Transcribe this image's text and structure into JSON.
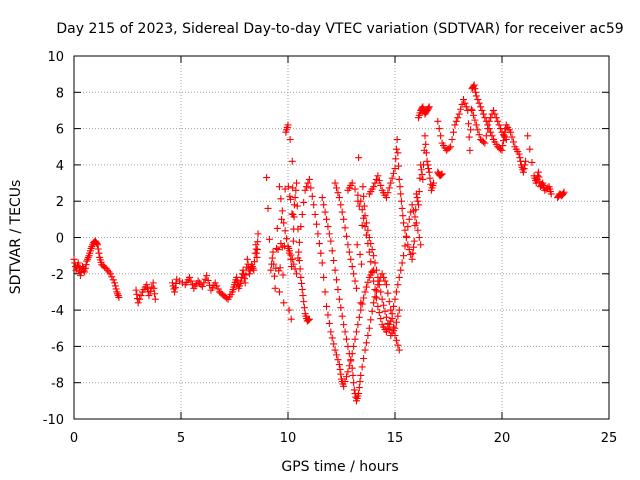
{
  "chart_data": {
    "type": "scatter",
    "title": "Day 215 of 2023, Sidereal Day-to-day VTEC variation (SDTVAR) for receiver ac59",
    "xlabel": "GPS time / hours",
    "ylabel": "SDTVAR / TECUs",
    "xlim": [
      0,
      25
    ],
    "ylim": [
      -10,
      10
    ],
    "xticks": [
      0,
      5,
      10,
      15,
      20,
      25
    ],
    "yticks": [
      -10,
      -8,
      -6,
      -4,
      -2,
      0,
      2,
      4,
      6,
      8,
      10
    ],
    "grid": true,
    "marker": "+",
    "color": "#ff0000",
    "series": [
      {
        "name": "SDTVAR",
        "segments": [
          [
            [
              0.0,
              -1.2
            ],
            [
              0.1,
              -1.8
            ],
            [
              0.2,
              -1.4
            ],
            [
              0.3,
              -2.1
            ],
            [
              0.4,
              -1.6
            ],
            [
              0.5,
              -1.9
            ],
            [
              0.6,
              -1.3
            ],
            [
              0.7,
              -1.0
            ],
            [
              0.8,
              -0.6
            ],
            [
              0.9,
              -0.3
            ],
            [
              1.0,
              -0.2
            ],
            [
              1.1,
              -0.4
            ],
            [
              1.2,
              -1.1
            ],
            [
              1.3,
              -1.5
            ],
            [
              1.5,
              -1.7
            ],
            [
              1.7,
              -2.0
            ],
            [
              1.9,
              -2.5
            ],
            [
              2.0,
              -3.0
            ],
            [
              2.1,
              -3.3
            ]
          ],
          [
            [
              2.9,
              -2.9
            ],
            [
              3.0,
              -3.6
            ],
            [
              3.2,
              -3.0
            ],
            [
              3.4,
              -2.6
            ],
            [
              3.5,
              -3.2
            ],
            [
              3.7,
              -2.5
            ],
            [
              3.8,
              -3.4
            ]
          ],
          [
            [
              4.6,
              -2.5
            ],
            [
              4.7,
              -3.0
            ],
            [
              4.8,
              -2.3
            ],
            [
              5.2,
              -2.6
            ],
            [
              5.4,
              -2.2
            ],
            [
              5.6,
              -2.8
            ],
            [
              5.8,
              -2.4
            ],
            [
              6.0,
              -2.7
            ],
            [
              6.2,
              -2.1
            ],
            [
              6.4,
              -2.9
            ],
            [
              6.6,
              -2.5
            ],
            [
              6.8,
              -3.0
            ],
            [
              7.0,
              -3.2
            ],
            [
              7.2,
              -3.4
            ],
            [
              7.4,
              -3.0
            ],
            [
              7.5,
              -2.6
            ],
            [
              7.6,
              -2.2
            ],
            [
              7.7,
              -2.8
            ],
            [
              7.8,
              -2.4
            ],
            [
              7.9,
              -1.8
            ],
            [
              8.0,
              -2.5
            ],
            [
              8.1,
              -1.2
            ],
            [
              8.2,
              -2.0
            ],
            [
              8.3,
              -1.5
            ],
            [
              8.4,
              -1.8
            ],
            [
              8.5,
              -0.4
            ],
            [
              8.55,
              -1.1
            ],
            [
              8.6,
              0.2
            ]
          ],
          [
            [
              9.0,
              3.3
            ],
            [
              9.2,
              -1.8
            ],
            [
              9.3,
              -0.8
            ],
            [
              9.4,
              -2.8
            ],
            [
              9.5,
              0.5
            ],
            [
              9.6,
              -3.0
            ],
            [
              9.7,
              1.0
            ],
            [
              9.8,
              -3.6
            ],
            [
              9.9,
              5.8
            ],
            [
              10.0,
              6.2
            ],
            [
              10.05,
              -4.0
            ],
            [
              10.1,
              5.4
            ],
            [
              10.15,
              -4.5
            ],
            [
              10.2,
              4.2
            ],
            [
              10.25,
              -0.2
            ],
            [
              10.3,
              1.8
            ],
            [
              10.4,
              3.0
            ],
            [
              10.5,
              -0.8
            ],
            [
              10.6,
              -2.2
            ],
            [
              10.7,
              -3.2
            ],
            [
              10.8,
              -4.2
            ],
            [
              10.9,
              -4.6
            ],
            [
              11.0,
              -4.5
            ]
          ],
          [
            [
              9.6,
              2.8
            ],
            [
              9.8,
              0.8
            ],
            [
              10.0,
              -0.5
            ],
            [
              10.2,
              -1.2
            ],
            [
              10.4,
              -2.0
            ],
            [
              10.6,
              0.6
            ],
            [
              10.8,
              2.6
            ],
            [
              11.0,
              3.2
            ],
            [
              11.2,
              1.8
            ],
            [
              11.4,
              0.2
            ],
            [
              11.6,
              -1.4
            ],
            [
              11.8,
              -3.8
            ],
            [
              12.0,
              -5.2
            ],
            [
              12.2,
              -6.2
            ],
            [
              12.4,
              -7.0
            ],
            [
              12.5,
              -7.8
            ],
            [
              12.6,
              -8.2
            ],
            [
              12.8,
              -7.4
            ],
            [
              13.0,
              -6.4
            ],
            [
              13.2,
              -5.2
            ],
            [
              13.4,
              -4.0
            ],
            [
              13.6,
              -3.0
            ],
            [
              13.8,
              -2.2
            ],
            [
              14.0,
              -1.8
            ]
          ],
          [
            [
              11.6,
              2.2
            ],
            [
              11.8,
              1.0
            ],
            [
              12.0,
              -0.2
            ],
            [
              12.2,
              -1.8
            ],
            [
              12.4,
              -3.4
            ],
            [
              12.6,
              -4.8
            ],
            [
              12.8,
              -6.0
            ],
            [
              13.0,
              -7.2
            ],
            [
              13.1,
              -8.4
            ],
            [
              13.2,
              -9.0
            ],
            [
              13.3,
              -8.6
            ],
            [
              13.4,
              -7.6
            ],
            [
              13.6,
              -6.2
            ],
            [
              13.8,
              -5.0
            ],
            [
              14.0,
              -3.6
            ],
            [
              14.2,
              -2.6
            ],
            [
              14.4,
              -2.0
            ],
            [
              14.6,
              -2.6
            ],
            [
              14.8,
              -4.0
            ],
            [
              15.0,
              -5.4
            ],
            [
              15.2,
              -6.2
            ]
          ],
          [
            [
              12.2,
              3.0
            ],
            [
              12.4,
              2.2
            ],
            [
              12.6,
              1.0
            ],
            [
              12.8,
              -0.4
            ],
            [
              13.0,
              -1.6
            ],
            [
              13.2,
              -2.8
            ],
            [
              13.3,
              4.4
            ],
            [
              13.4,
              -3.6
            ],
            [
              13.5,
              2.8
            ],
            [
              13.6,
              1.2
            ],
            [
              13.8,
              0.0
            ],
            [
              14.0,
              -1.0
            ],
            [
              14.2,
              -2.2
            ],
            [
              14.4,
              -3.4
            ],
            [
              14.6,
              -4.4
            ],
            [
              14.8,
              -5.4
            ],
            [
              15.0,
              -5.0
            ],
            [
              15.2,
              -4.0
            ]
          ],
          [
            [
              12.8,
              2.6
            ],
            [
              13.0,
              3.0
            ],
            [
              13.4,
              2.0
            ],
            [
              13.6,
              0.6
            ],
            [
              13.8,
              -0.8
            ],
            [
              14.0,
              -2.4
            ],
            [
              14.2,
              -3.8
            ],
            [
              14.4,
              -4.8
            ],
            [
              14.6,
              -5.2
            ],
            [
              14.8,
              -4.6
            ],
            [
              15.0,
              -3.4
            ],
            [
              15.2,
              -2.2
            ],
            [
              15.4,
              -1.0
            ],
            [
              15.6,
              0.6
            ],
            [
              15.8,
              1.8
            ],
            [
              16.0,
              0.8
            ],
            [
              16.2,
              -0.4
            ]
          ],
          [
            [
              13.8,
              2.4
            ],
            [
              14.0,
              2.8
            ],
            [
              14.2,
              3.4
            ],
            [
              14.4,
              2.6
            ],
            [
              14.6,
              2.2
            ],
            [
              14.8,
              3.0
            ],
            [
              15.0,
              3.8
            ],
            [
              15.1,
              5.4
            ],
            [
              15.2,
              3.2
            ],
            [
              15.3,
              2.0
            ],
            [
              15.4,
              0.8
            ],
            [
              15.6,
              -0.4
            ],
            [
              15.8,
              -1.2
            ],
            [
              15.9,
              -0.2
            ],
            [
              16.0,
              2.4
            ],
            [
              16.1,
              1.8
            ],
            [
              16.2,
              4.0
            ],
            [
              16.3,
              3.2
            ],
            [
              16.4,
              5.6
            ],
            [
              16.5,
              4.2
            ],
            [
              16.6,
              3.6
            ],
            [
              16.7,
              2.6
            ],
            [
              16.8,
              3.0
            ]
          ],
          [
            [
              16.1,
              6.6
            ],
            [
              16.2,
              7.0
            ],
            [
              16.3,
              7.2
            ],
            [
              16.4,
              6.8
            ],
            [
              16.5,
              7.0
            ],
            [
              16.6,
              7.2
            ]
          ],
          [
            [
              17.0,
              3.6
            ],
            [
              17.1,
              3.4
            ],
            [
              17.2,
              3.5
            ]
          ],
          [
            [
              17.0,
              6.4
            ],
            [
              17.2,
              5.2
            ],
            [
              17.4,
              4.8
            ],
            [
              17.6,
              5.0
            ],
            [
              17.8,
              6.2
            ],
            [
              18.0,
              6.8
            ],
            [
              18.2,
              7.6
            ],
            [
              18.4,
              7.0
            ],
            [
              18.5,
              4.8
            ],
            [
              18.6,
              8.2
            ],
            [
              18.7,
              8.4
            ],
            [
              18.8,
              7.8
            ],
            [
              19.0,
              7.2
            ],
            [
              19.2,
              6.6
            ],
            [
              19.4,
              6.0
            ],
            [
              19.6,
              5.4
            ],
            [
              19.8,
              5.0
            ],
            [
              20.0,
              4.8
            ],
            [
              20.1,
              5.6
            ],
            [
              20.2,
              6.2
            ],
            [
              20.4,
              5.8
            ],
            [
              20.6,
              5.0
            ],
            [
              20.8,
              4.6
            ],
            [
              20.9,
              4.0
            ],
            [
              21.0,
              3.6
            ],
            [
              21.1,
              4.2
            ]
          ],
          [
            [
              18.6,
              7.0
            ],
            [
              18.8,
              6.2
            ],
            [
              19.0,
              5.4
            ],
            [
              19.2,
              5.2
            ],
            [
              19.4,
              6.4
            ],
            [
              19.6,
              7.0
            ],
            [
              19.8,
              6.4
            ],
            [
              20.0,
              5.8
            ],
            [
              20.2,
              5.4
            ]
          ],
          [
            [
              21.2,
              5.6
            ],
            [
              21.5,
              3.4
            ],
            [
              21.6,
              3.0
            ],
            [
              21.7,
              3.6
            ],
            [
              21.8,
              2.8
            ],
            [
              21.9,
              3.0
            ],
            [
              22.0,
              2.6
            ],
            [
              22.2,
              2.8
            ],
            [
              22.3,
              2.4
            ]
          ],
          [
            [
              22.6,
              2.2
            ],
            [
              22.7,
              2.4
            ],
            [
              22.8,
              2.3
            ],
            [
              22.9,
              2.5
            ]
          ]
        ]
      }
    ]
  }
}
